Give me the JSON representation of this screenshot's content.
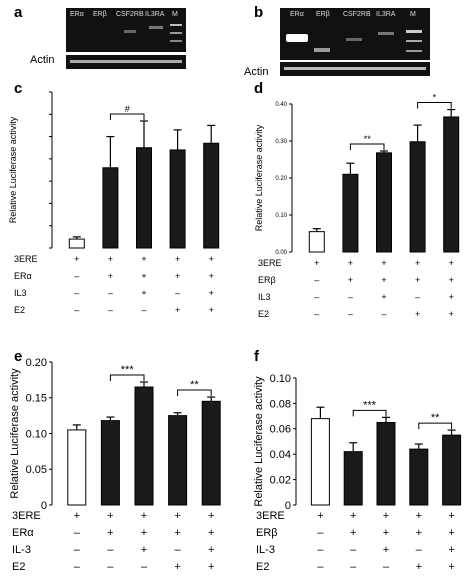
{
  "panels": {
    "a": {
      "letter": "a",
      "lanes": [
        "ERα",
        "ERβ",
        "CSF2RB",
        "IL3RA",
        "M"
      ],
      "actin": "Actin"
    },
    "b": {
      "letter": "b",
      "lanes": [
        "ERα",
        "ERβ",
        "CSF2RB",
        "IL3RA",
        "M"
      ],
      "actin": "Actin"
    }
  },
  "chart_data": [
    {
      "panel": "c",
      "type": "bar",
      "ylabel": "Relative Luciferase activity",
      "ylim": [
        0,
        0.7
      ],
      "yticks": [],
      "bar_colors": [
        "#ffffff",
        "#1a1a1a",
        "#1a1a1a",
        "#1a1a1a",
        "#1a1a1a"
      ],
      "values": [
        0.04,
        0.36,
        0.45,
        0.44,
        0.47
      ],
      "errors": [
        0.01,
        0.14,
        0.12,
        0.09,
        0.08
      ],
      "significance": [
        {
          "from": 1,
          "to": 2,
          "label": "#"
        }
      ],
      "conditions": [
        {
          "label": "3ERE",
          "marks": [
            "+",
            "+",
            "+",
            "+",
            "+"
          ]
        },
        {
          "label": "ERα",
          "marks": [
            "–",
            "+",
            "+",
            "+",
            "+"
          ]
        },
        {
          "label": "IL3",
          "marks": [
            "–",
            "–",
            "+",
            "–",
            "+"
          ]
        },
        {
          "label": "E2",
          "marks": [
            "–",
            "–",
            "–",
            "+",
            "+"
          ]
        }
      ]
    },
    {
      "panel": "d",
      "type": "bar",
      "ylabel": "Relative Luciferase activity",
      "ylim": [
        0,
        0.4
      ],
      "yticks": [
        "0.00",
        "0.10",
        "0.20",
        "0.30",
        "0.40"
      ],
      "bar_colors": [
        "#ffffff",
        "#1a1a1a",
        "#1a1a1a",
        "#1a1a1a",
        "#1a1a1a"
      ],
      "values": [
        0.055,
        0.21,
        0.268,
        0.298,
        0.365
      ],
      "errors": [
        0.008,
        0.03,
        0.005,
        0.045,
        0.02
      ],
      "significance": [
        {
          "from": 1,
          "to": 2,
          "label": "**"
        },
        {
          "from": 3,
          "to": 4,
          "label": "*"
        }
      ],
      "conditions": [
        {
          "label": "3ERE",
          "marks": [
            "+",
            "+",
            "+",
            "+",
            "+"
          ]
        },
        {
          "label": "ERβ",
          "marks": [
            "–",
            "+",
            "+",
            "+",
            "+"
          ]
        },
        {
          "label": "IL3",
          "marks": [
            "–",
            "–",
            "+",
            "–",
            "+"
          ]
        },
        {
          "label": "E2",
          "marks": [
            "–",
            "–",
            "–",
            "+",
            "+"
          ]
        }
      ]
    },
    {
      "panel": "e",
      "type": "bar",
      "ylabel": "Relative Luciferase activity",
      "ylim": [
        0,
        0.2
      ],
      "yticks": [
        "0",
        "0.05",
        "0.10",
        "0.15",
        "0.20"
      ],
      "bar_colors": [
        "#ffffff",
        "#1a1a1a",
        "#1a1a1a",
        "#1a1a1a",
        "#1a1a1a"
      ],
      "values": [
        0.105,
        0.118,
        0.165,
        0.125,
        0.145
      ],
      "errors": [
        0.007,
        0.005,
        0.007,
        0.004,
        0.006
      ],
      "significance": [
        {
          "from": 1,
          "to": 2,
          "label": "***"
        },
        {
          "from": 3,
          "to": 4,
          "label": "**"
        }
      ],
      "conditions": [
        {
          "label": "3ERE",
          "marks": [
            "+",
            "+",
            "+",
            "+",
            "+"
          ]
        },
        {
          "label": "ERα",
          "marks": [
            "–",
            "+",
            "+",
            "+",
            "+"
          ]
        },
        {
          "label": "IL-3",
          "marks": [
            "–",
            "–",
            "+",
            "–",
            "+"
          ]
        },
        {
          "label": "E2",
          "marks": [
            "–",
            "–",
            "–",
            "+",
            "+"
          ]
        }
      ]
    },
    {
      "panel": "f",
      "type": "bar",
      "ylabel": "Relative Luciferase activity",
      "ylim": [
        0,
        0.1
      ],
      "yticks": [
        "0",
        "0.02",
        "0.04",
        "0.06",
        "0.08",
        "0.10"
      ],
      "bar_colors": [
        "#ffffff",
        "#1a1a1a",
        "#1a1a1a",
        "#1a1a1a",
        "#1a1a1a"
      ],
      "values": [
        0.068,
        0.042,
        0.065,
        0.044,
        0.055
      ],
      "errors": [
        0.009,
        0.007,
        0.004,
        0.004,
        0.004
      ],
      "significance": [
        {
          "from": 1,
          "to": 2,
          "label": "***"
        },
        {
          "from": 3,
          "to": 4,
          "label": "**"
        }
      ],
      "conditions": [
        {
          "label": "3ERE",
          "marks": [
            "+",
            "+",
            "+",
            "+",
            "+"
          ]
        },
        {
          "label": "ERβ",
          "marks": [
            "–",
            "+",
            "+",
            "+",
            "+"
          ]
        },
        {
          "label": "IL-3",
          "marks": [
            "–",
            "–",
            "+",
            "–",
            "+"
          ]
        },
        {
          "label": "E2",
          "marks": [
            "–",
            "–",
            "–",
            "+",
            "+"
          ]
        }
      ]
    }
  ]
}
